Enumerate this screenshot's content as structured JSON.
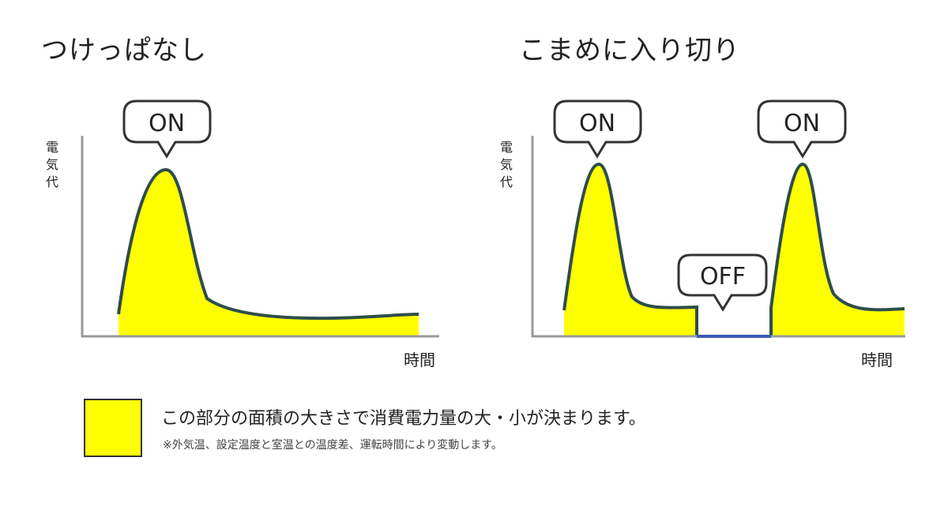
{
  "left_panel": {
    "title": "つけっぱなし",
    "y_label": "電気代",
    "x_label": "時間",
    "bubble": "ON"
  },
  "right_panel": {
    "title": "こまめに入り切り",
    "y_label": "電気代",
    "x_label": "時間",
    "bubble_on_1": "ON",
    "bubble_off": "OFF",
    "bubble_on_2": "ON"
  },
  "legend": {
    "text": "この部分の面積の大きさで消費電力量の大・小が決まります。",
    "note": "※外気温、設定温度と室温との温度差、運転時間により変動します。",
    "swatch_color": "#ffff00"
  },
  "colors": {
    "fill": "#ffff00",
    "curve": "#2e4d4a",
    "axis": "#9a9a9a",
    "off_line": "#3b5ab8"
  }
}
